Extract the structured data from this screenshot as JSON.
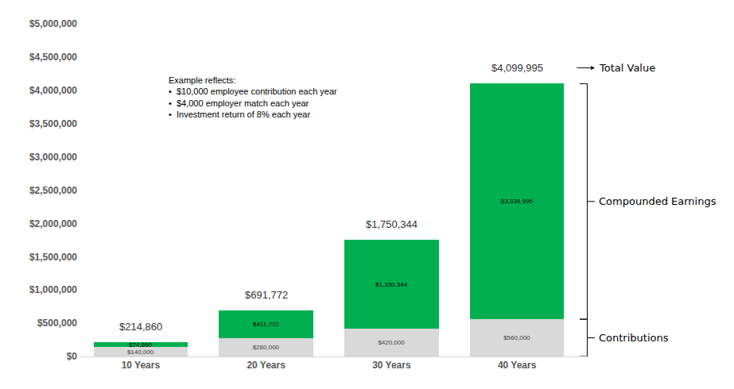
{
  "chart_data": {
    "type": "bar",
    "stacked": true,
    "data_labels": true,
    "grid": false,
    "categories": [
      "10 Years",
      "20 Years",
      "30 Years",
      "40 Years"
    ],
    "series": [
      {
        "name": "Contributions",
        "color": "#d9d9d9",
        "values": [
          140000,
          280000,
          420000,
          560000
        ],
        "value_labels": [
          "$140,000",
          "$280,000",
          "$420,000",
          "$560,000"
        ]
      },
      {
        "name": "Compounded Earnings",
        "color": "#00b050",
        "values": [
          74860,
          411772,
          1330344,
          3539995
        ],
        "value_labels": [
          "$74,860",
          "$411,772",
          "$1,330,344",
          "$3,539,995"
        ]
      }
    ],
    "totals": {
      "name": "Total Value",
      "values": [
        214860,
        691772,
        1750344,
        4099995
      ],
      "value_labels": [
        "$214,860",
        "$691,772",
        "$1,750,344",
        "$4,099,995"
      ]
    },
    "annotations": [
      "Example reflects:",
      "•  $10,000 employee contribution each year",
      "•  $4,000 employer match each year",
      "•  Investment return of 8% each year"
    ],
    "ylim": [
      0,
      5000000
    ],
    "yticks": [
      {
        "value": 0,
        "label": "$0"
      },
      {
        "value": 500000,
        "label": "$500,000"
      },
      {
        "value": 1000000,
        "label": "$1,000,000"
      },
      {
        "value": 1500000,
        "label": "$1,500,000"
      },
      {
        "value": 2000000,
        "label": "$2,000,000"
      },
      {
        "value": 2500000,
        "label": "$2,500,000"
      },
      {
        "value": 3000000,
        "label": "$3,000,000"
      },
      {
        "value": 3500000,
        "label": "$3,500,000"
      },
      {
        "value": 4000000,
        "label": "$4,000,000"
      },
      {
        "value": 4500000,
        "label": "$4,500,000"
      },
      {
        "value": 5000000,
        "label": "$5,000,000"
      }
    ]
  }
}
